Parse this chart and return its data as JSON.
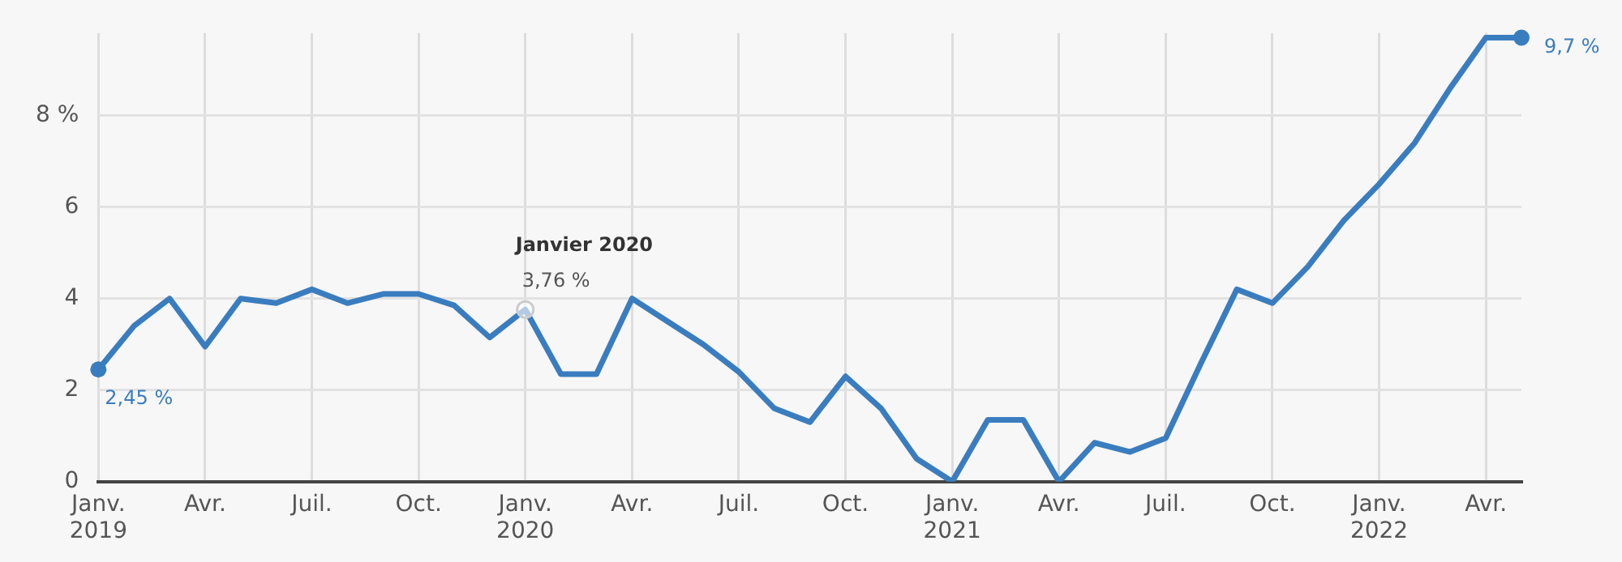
{
  "chart_data": {
    "type": "line",
    "categories": [
      "Janv.\n2019",
      null,
      null,
      "Avr.",
      null,
      null,
      "Juil.",
      null,
      null,
      "Oct.",
      null,
      null,
      "Janv.\n2020",
      null,
      null,
      "Avr.",
      null,
      null,
      "Juil.",
      null,
      null,
      "Oct.",
      null,
      null,
      "Janv.\n2021",
      null,
      null,
      "Avr.",
      null,
      null,
      "Juil.",
      null,
      null,
      "Oct.",
      null,
      null,
      "Janv.\n2022",
      null,
      null,
      "Avr.",
      null
    ],
    "series": [
      {
        "color": "#3a7dbf",
        "values": [
          2.45,
          3.4,
          4.0,
          2.95,
          4.0,
          3.9,
          4.2,
          3.9,
          4.1,
          4.1,
          3.85,
          3.15,
          3.76,
          2.35,
          2.35,
          4.0,
          3.5,
          3.0,
          2.4,
          1.6,
          1.3,
          2.3,
          1.6,
          0.5,
          0.0,
          1.35,
          1.35,
          0.0,
          0.85,
          0.65,
          0.95,
          2.6,
          4.2,
          3.9,
          4.7,
          5.7,
          6.5,
          7.4,
          8.6,
          9.7,
          9.7
        ]
      }
    ],
    "ylim": [
      0,
      9.8
    ],
    "yticks": [
      0,
      2,
      4,
      6,
      {
        "value": 8,
        "label": "8 %"
      }
    ],
    "grid": true,
    "marker": "none",
    "line_style": "solid",
    "annotations": [
      {
        "text": "2,45 %",
        "x": "Janv.\n2019",
        "y": 2.45
      },
      {
        "text": "Janvier 2020",
        "x": "Janv.\n2020",
        "y": 3.76
      },
      {
        "text": "3,76 %",
        "x": "Janv.\n2020",
        "y": 3.76
      },
      "9,7 %"
    ]
  }
}
